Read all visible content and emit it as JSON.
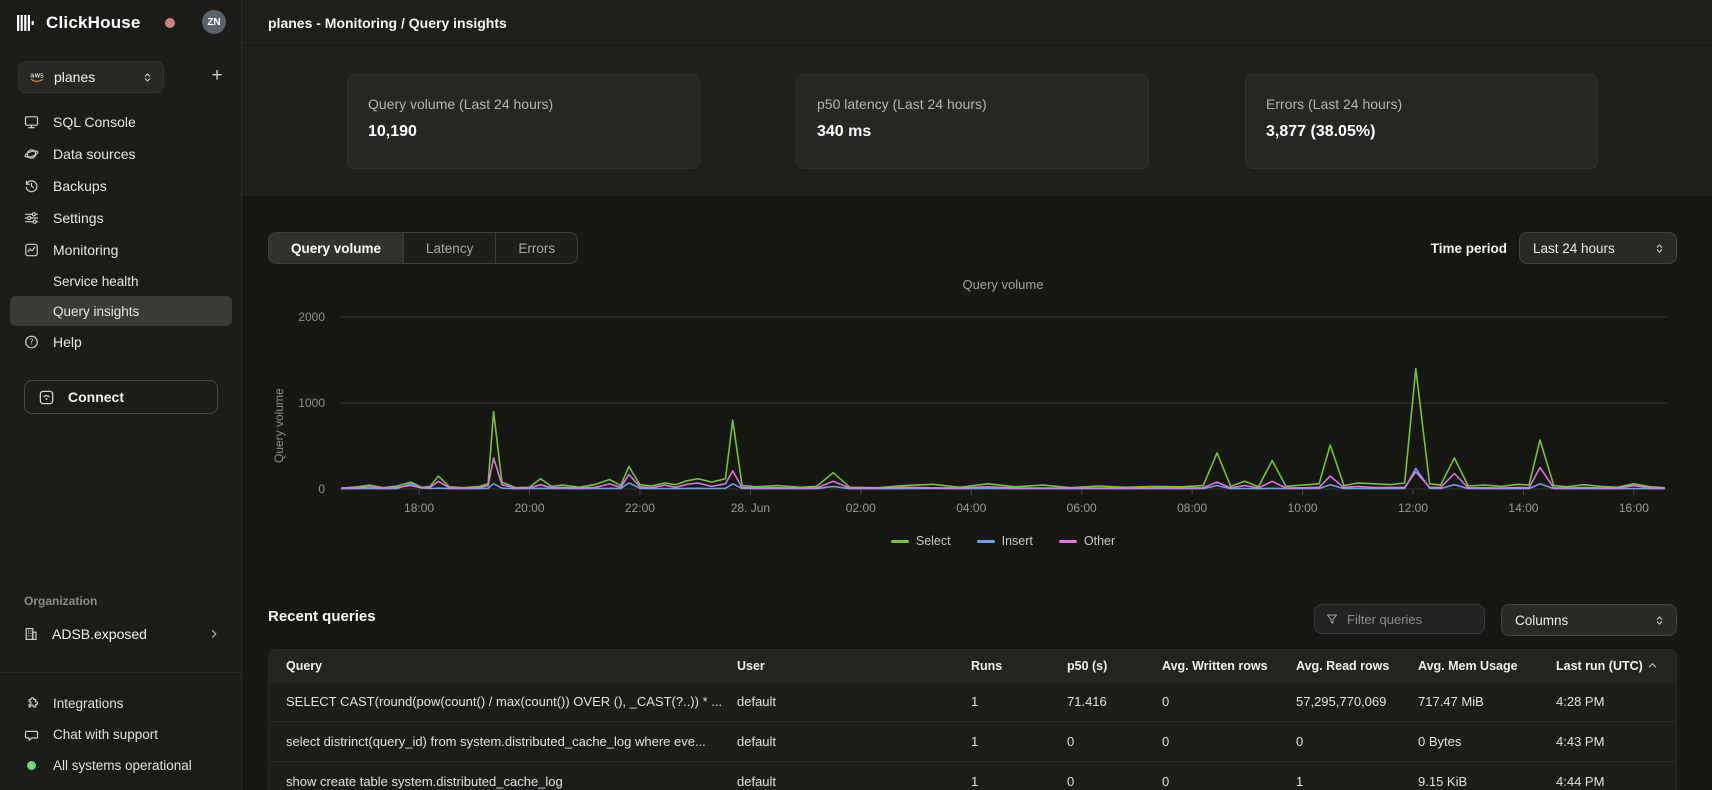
{
  "sidebar": {
    "brand": "ClickHouse",
    "avatar_initials": "ZN",
    "service_selector": {
      "value": "planes",
      "provider_icon": "aws-icon"
    },
    "nav": [
      {
        "label": "SQL Console",
        "icon": "console",
        "child": false,
        "active": false
      },
      {
        "label": "Data sources",
        "icon": "data-sources",
        "child": false,
        "active": false
      },
      {
        "label": "Backups",
        "icon": "backups",
        "child": false,
        "active": false
      },
      {
        "label": "Settings",
        "icon": "settings",
        "child": false,
        "active": false
      },
      {
        "label": "Monitoring",
        "icon": "monitoring",
        "child": false,
        "active": false
      },
      {
        "label": "Service health",
        "icon": null,
        "child": true,
        "active": false
      },
      {
        "label": "Query insights",
        "icon": null,
        "child": true,
        "active": true
      },
      {
        "label": "Help",
        "icon": "help",
        "child": false,
        "active": false
      }
    ],
    "connect_label": "Connect",
    "organization": {
      "heading": "Organization",
      "name": "ADSB.exposed"
    },
    "footer": [
      {
        "label": "Integrations",
        "icon": "integrations"
      },
      {
        "label": "Chat with support",
        "icon": "chat"
      },
      {
        "label": "All systems operational",
        "icon": "status-dot"
      }
    ]
  },
  "header": {
    "title": "planes - Monitoring / Query insights"
  },
  "stats": [
    {
      "label": "Query volume (Last 24 hours)",
      "value": "10,190"
    },
    {
      "label": "p50 latency (Last 24 hours)",
      "value": "340 ms"
    },
    {
      "label": "Errors (Last 24 hours)",
      "value": "3,877 (38.05%)"
    }
  ],
  "tabs": {
    "items": [
      "Query volume",
      "Latency",
      "Errors"
    ],
    "active_index": 0
  },
  "time_period": {
    "label": "Time period",
    "value": "Last 24 hours"
  },
  "chart_data": {
    "type": "line",
    "title": "Query volume",
    "ylabel": "Query volume",
    "xlim": [
      16.55,
      40.6
    ],
    "ylim": [
      0,
      2000
    ],
    "yticks": [
      0,
      1000,
      2000
    ],
    "grid": "horizontal",
    "legend_position": "bottom",
    "xticks": [
      [
        18,
        "18:00"
      ],
      [
        20,
        "20:00"
      ],
      [
        22,
        "22:00"
      ],
      [
        24,
        "28. Jun"
      ],
      [
        26,
        "02:00"
      ],
      [
        28,
        "04:00"
      ],
      [
        30,
        "06:00"
      ],
      [
        32,
        "08:00"
      ],
      [
        34,
        "10:00"
      ],
      [
        36,
        "12:00"
      ],
      [
        38,
        "14:00"
      ],
      [
        40,
        "16:00"
      ]
    ],
    "series": [
      {
        "name": "Select",
        "color": "#74c143"
      },
      {
        "name": "Insert",
        "color": "#6f9de8"
      },
      {
        "name": "Other",
        "color": "#df72df"
      }
    ],
    "points_format": [
      "hour",
      "Select",
      "Insert",
      "Other"
    ],
    "points": [
      [
        16.6,
        10,
        4,
        12
      ],
      [
        16.9,
        25,
        5,
        14
      ],
      [
        17.1,
        45,
        6,
        25
      ],
      [
        17.35,
        15,
        4,
        12
      ],
      [
        17.6,
        35,
        5,
        20
      ],
      [
        17.85,
        80,
        60,
        40
      ],
      [
        18.05,
        20,
        12,
        12
      ],
      [
        18.2,
        30,
        6,
        18
      ],
      [
        18.35,
        150,
        10,
        90
      ],
      [
        18.55,
        25,
        5,
        14
      ],
      [
        18.8,
        15,
        4,
        10
      ],
      [
        19.1,
        30,
        5,
        16
      ],
      [
        19.25,
        60,
        8,
        40
      ],
      [
        19.35,
        900,
        60,
        360
      ],
      [
        19.5,
        80,
        10,
        50
      ],
      [
        19.75,
        15,
        4,
        10
      ],
      [
        20.0,
        20,
        5,
        12
      ],
      [
        20.2,
        120,
        8,
        50
      ],
      [
        20.4,
        30,
        5,
        14
      ],
      [
        20.6,
        45,
        6,
        18
      ],
      [
        20.9,
        20,
        4,
        10
      ],
      [
        21.2,
        55,
        6,
        20
      ],
      [
        21.45,
        110,
        8,
        60
      ],
      [
        21.65,
        40,
        5,
        16
      ],
      [
        21.8,
        260,
        70,
        170
      ],
      [
        22.0,
        50,
        8,
        25
      ],
      [
        22.2,
        35,
        5,
        14
      ],
      [
        22.45,
        70,
        6,
        45
      ],
      [
        22.65,
        50,
        5,
        20
      ],
      [
        22.85,
        95,
        7,
        55
      ],
      [
        23.05,
        120,
        8,
        70
      ],
      [
        23.3,
        80,
        6,
        30
      ],
      [
        23.55,
        120,
        8,
        60
      ],
      [
        23.68,
        800,
        60,
        210
      ],
      [
        23.85,
        40,
        6,
        16
      ],
      [
        24.1,
        25,
        4,
        12
      ],
      [
        24.5,
        40,
        5,
        14
      ],
      [
        24.9,
        20,
        4,
        10
      ],
      [
        25.2,
        30,
        5,
        12
      ],
      [
        25.5,
        190,
        30,
        90
      ],
      [
        25.8,
        20,
        4,
        10
      ],
      [
        26.3,
        15,
        4,
        10
      ],
      [
        26.8,
        40,
        5,
        20
      ],
      [
        27.3,
        55,
        6,
        14
      ],
      [
        27.8,
        20,
        4,
        10
      ],
      [
        28.3,
        60,
        6,
        25
      ],
      [
        28.8,
        25,
        4,
        10
      ],
      [
        29.3,
        45,
        5,
        12
      ],
      [
        29.8,
        15,
        4,
        10
      ],
      [
        30.3,
        35,
        5,
        12
      ],
      [
        30.8,
        20,
        4,
        10
      ],
      [
        31.3,
        30,
        5,
        12
      ],
      [
        31.8,
        25,
        4,
        10
      ],
      [
        32.2,
        40,
        5,
        14
      ],
      [
        32.45,
        420,
        40,
        80
      ],
      [
        32.7,
        30,
        5,
        12
      ],
      [
        32.95,
        90,
        6,
        40
      ],
      [
        33.2,
        25,
        4,
        12
      ],
      [
        33.45,
        330,
        8,
        90
      ],
      [
        33.7,
        30,
        5,
        12
      ],
      [
        34.0,
        45,
        5,
        14
      ],
      [
        34.3,
        60,
        6,
        20
      ],
      [
        34.5,
        510,
        50,
        150
      ],
      [
        34.75,
        40,
        5,
        16
      ],
      [
        35.0,
        70,
        6,
        30
      ],
      [
        35.3,
        60,
        5,
        18
      ],
      [
        35.6,
        50,
        5,
        16
      ],
      [
        35.85,
        70,
        6,
        20
      ],
      [
        36.05,
        1400,
        240,
        200
      ],
      [
        36.3,
        60,
        8,
        20
      ],
      [
        36.5,
        45,
        5,
        16
      ],
      [
        36.75,
        360,
        50,
        180
      ],
      [
        37.0,
        35,
        5,
        14
      ],
      [
        37.3,
        45,
        5,
        14
      ],
      [
        37.6,
        30,
        4,
        12
      ],
      [
        37.9,
        55,
        5,
        16
      ],
      [
        38.1,
        45,
        5,
        14
      ],
      [
        38.3,
        570,
        60,
        250
      ],
      [
        38.55,
        40,
        5,
        14
      ],
      [
        38.8,
        25,
        4,
        10
      ],
      [
        39.1,
        50,
        5,
        16
      ],
      [
        39.4,
        30,
        4,
        12
      ],
      [
        39.7,
        20,
        4,
        10
      ],
      [
        40.0,
        60,
        6,
        40
      ],
      [
        40.3,
        25,
        4,
        12
      ],
      [
        40.55,
        15,
        4,
        10
      ]
    ]
  },
  "recent": {
    "heading": "Recent queries",
    "filter_placeholder": "Filter queries",
    "columns_label": "Columns",
    "table": {
      "headers": [
        "Query",
        "User",
        "Runs",
        "p50 (s)",
        "Avg. Written rows",
        "Avg. Read rows",
        "Avg. Mem Usage",
        "Last run (UTC)"
      ],
      "sorted_by": "Last run (UTC)",
      "sort_direction": "asc",
      "rows": [
        [
          "SELECT CAST(round(pow(count() / max(count()) OVER (), _CAST(?..)) * ...",
          "default",
          "1",
          "71.416",
          "0",
          "57,295,770,069",
          "717.47 MiB",
          "4:28 PM"
        ],
        [
          "select distrinct(query_id) from system.distributed_cache_log where eve...",
          "default",
          "1",
          "0",
          "0",
          "0",
          "0 Bytes",
          "4:43 PM"
        ],
        [
          "show create table system.distributed_cache_log",
          "default",
          "1",
          "0",
          "0",
          "1",
          "9.15 KiB",
          "4:44 PM"
        ]
      ]
    }
  },
  "colors": {
    "accent_select_green": "#74c143",
    "accent_insert_blue": "#6f9de8",
    "accent_other_magenta": "#df72df",
    "status_operational_green": "#77d377",
    "presence_dot_pink": "#c98383",
    "sidebar_bg": "#1b1b18",
    "band_bg": "#1e1e1b",
    "content_bg": "#161613",
    "card_bg": "#262622"
  }
}
